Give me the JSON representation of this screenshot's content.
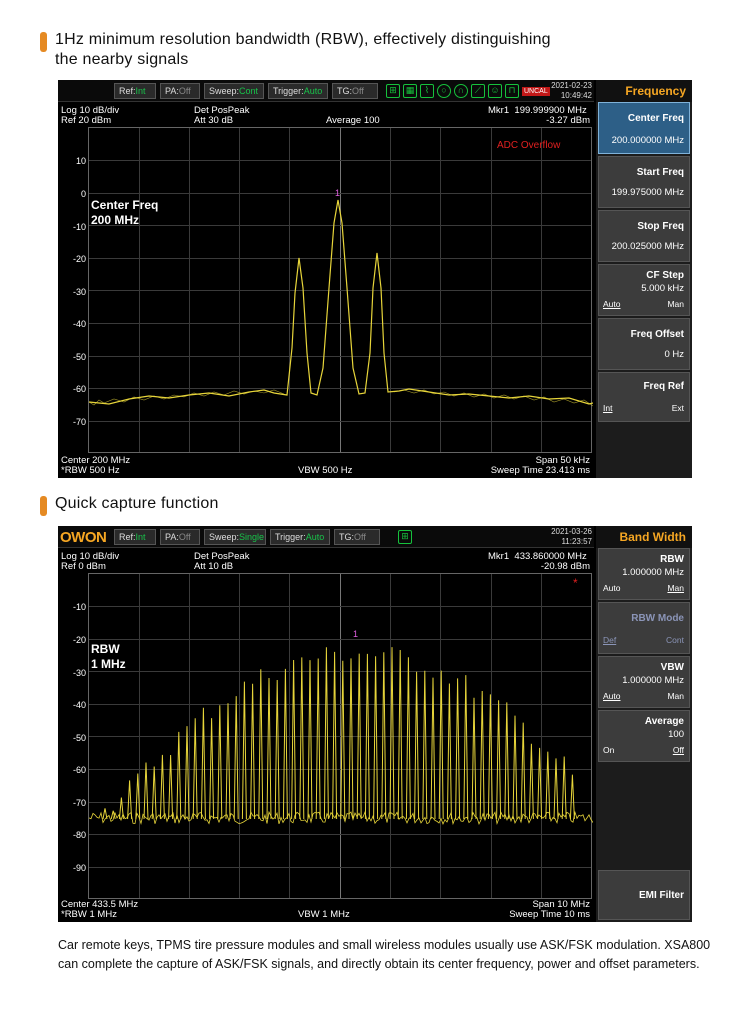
{
  "section1": {
    "title_line1": "1Hz minimum resolution bandwidth (RBW), effectively distinguishing",
    "title_line2": "the nearby signals"
  },
  "section2": {
    "title": "Quick capture function"
  },
  "screen1": {
    "logo": "",
    "toolbar": [
      {
        "label": "Ref:",
        "value": "Int",
        "state": "on"
      },
      {
        "label": "PA:",
        "value": "Off",
        "state": "off"
      },
      {
        "label": "Sweep:",
        "value": "Cont",
        "state": "on"
      },
      {
        "label": "Trigger:",
        "value": "Auto",
        "state": "on"
      },
      {
        "label": "TG:",
        "value": "Off",
        "state": "off"
      }
    ],
    "uncal": "UNCAL",
    "date": "2021-02-23",
    "time": "10:49:42",
    "info": {
      "scale": "Log 10 dB/div",
      "ref": "Ref 20 dBm",
      "det": "Det PosPeak",
      "att": "Att 30 dB",
      "avg": "Average 100",
      "mkr_label": "Mkr1",
      "mkr_freq": "199.999900 MHz",
      "mkr_level": "-3.27 dBm"
    },
    "warning": "ADC Overflow",
    "overlay_line1": "Center Freq",
    "overlay_line2": "200 MHz",
    "marker": "1",
    "y_ticks": [
      "10",
      "0",
      "-10",
      "-20",
      "-30",
      "-40",
      "-50",
      "-60",
      "-70"
    ],
    "bottom": {
      "center": "Center 200 MHz",
      "rbw": "*RBW 500 Hz",
      "vbw": "VBW 500 Hz",
      "span": "Span 50 kHz",
      "sweep": "Sweep Time 23.413 ms"
    },
    "panel": {
      "title": "Frequency",
      "items": [
        {
          "name": "Center Freq",
          "value": "200.000000 MHz"
        },
        {
          "name": "Start Freq",
          "value": "199.975000 MHz"
        },
        {
          "name": "Stop Freq",
          "value": "200.025000 MHz"
        },
        {
          "name": "CF Step",
          "value": "5.000 kHz",
          "left": "Auto",
          "right": "Man"
        },
        {
          "name": "Freq Offset",
          "value": "0 Hz"
        },
        {
          "name": "Freq Ref",
          "left": "Int",
          "right": "Ext"
        }
      ]
    }
  },
  "screen2": {
    "logo": "OWON",
    "toolbar": [
      {
        "label": "Ref:",
        "value": "Int",
        "state": "on"
      },
      {
        "label": "PA:",
        "value": "Off",
        "state": "off"
      },
      {
        "label": "Sweep:",
        "value": "Single",
        "state": "on"
      },
      {
        "label": "Trigger:",
        "value": "Auto",
        "state": "on"
      },
      {
        "label": "TG:",
        "value": "Off",
        "state": "off"
      }
    ],
    "date": "2021-03-26",
    "time": "11:23:57",
    "info": {
      "scale": "Log 10 dB/div",
      "ref": "Ref 0 dBm",
      "det": "Det PosPeak",
      "att": "Att 10 dB",
      "mkr_label": "Mkr1",
      "mkr_freq": "433.860000 MHz",
      "mkr_level": "-20.98 dBm"
    },
    "overlay_line1": "RBW",
    "overlay_line2": "1 MHz",
    "marker": "1",
    "star": "*",
    "y_ticks": [
      "-10",
      "-20",
      "-30",
      "-40",
      "-50",
      "-60",
      "-70",
      "-80",
      "-90"
    ],
    "bottom": {
      "center": "Center 433.5 MHz",
      "rbw": "*RBW 1 MHz",
      "vbw": "VBW 1 MHz",
      "span": "Span 10 MHz",
      "sweep": "Sweep Time 10 ms"
    },
    "panel": {
      "title": "Band Width",
      "items": [
        {
          "name": "RBW",
          "value": "1.000000 MHz",
          "left": "Auto",
          "right": "Man"
        },
        {
          "name": "RBW Mode",
          "left": "Def",
          "right": "Cont"
        },
        {
          "name": "VBW",
          "value": "1.000000 MHz",
          "left": "Auto",
          "right": "Man"
        },
        {
          "name": "Average",
          "value": "100",
          "left": "On",
          "right": "Off"
        },
        {
          "name": "EMI Filter"
        }
      ]
    }
  },
  "description": "Car remote keys, TPMS tire pressure modules and small wireless modules usually use ASK/FSK modulation. XSA800 can complete the capture of ASK/FSK signals, and directly obtain its center frequency, power and offset parameters.",
  "colors": {
    "accent": "#e58a23",
    "trace": "#e7d53a",
    "panel_title": "#f5a623",
    "selected": "#2d5f87"
  }
}
